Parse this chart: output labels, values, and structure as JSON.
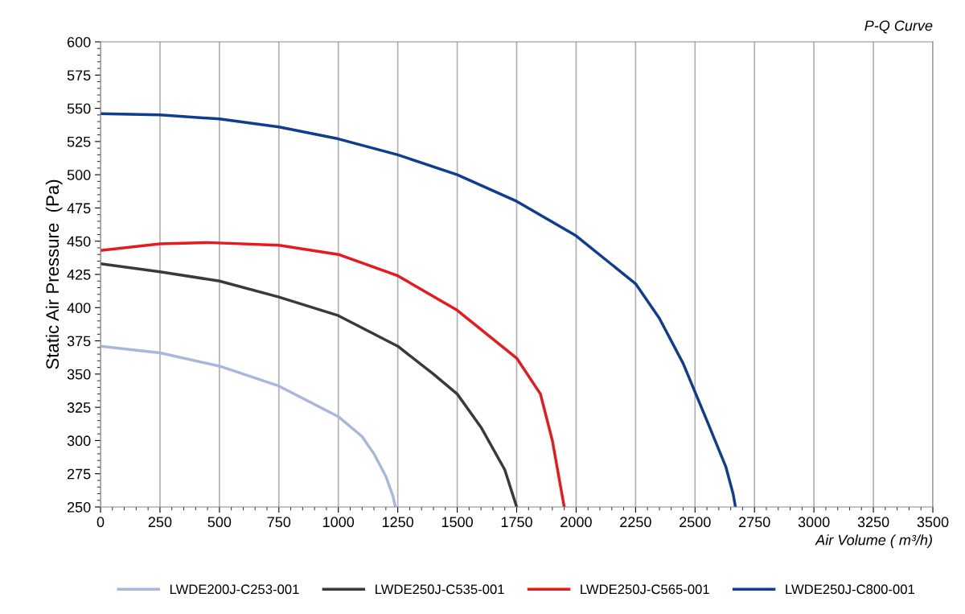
{
  "chart_data": {
    "type": "line",
    "title": "P-Q Curve",
    "xlabel": "Air Volume ( m³/h)",
    "ylabel": "Static Air Pressure  (Pa)",
    "xlim": [
      0,
      3500
    ],
    "xticks": [
      0,
      250,
      500,
      750,
      1000,
      1250,
      1500,
      1750,
      2000,
      2250,
      2500,
      2750,
      3000,
      3250,
      3500
    ],
    "ylim": [
      250,
      600
    ],
    "yticks": [
      250,
      275,
      300,
      325,
      350,
      375,
      400,
      425,
      450,
      475,
      500,
      525,
      550,
      575,
      600
    ],
    "grid": "x",
    "legend": "bottom",
    "marker": "none",
    "line_style": "solid",
    "series": [
      {
        "name": "LWDE200J-C253-001",
        "color": "#a9b7dd",
        "x": [
          0,
          250,
          500,
          750,
          1000,
          1100,
          1150,
          1200,
          1230,
          1240
        ],
        "values": [
          371,
          366,
          356,
          341,
          318,
          303,
          290,
          273,
          258,
          250
        ]
      },
      {
        "name": "LWDE250J-C535-001",
        "color": "#3a3a3a",
        "x": [
          0,
          250,
          500,
          750,
          1000,
          1250,
          1400,
          1500,
          1600,
          1700,
          1750
        ],
        "values": [
          433,
          427,
          420,
          408,
          394,
          371,
          350,
          335,
          310,
          278,
          250
        ]
      },
      {
        "name": "LWDE250J-C565-001",
        "color": "#e8191c",
        "x": [
          0,
          250,
          450,
          750,
          1000,
          1250,
          1500,
          1750,
          1850,
          1900,
          1930,
          1950
        ],
        "values": [
          443,
          448,
          449,
          447,
          440,
          424,
          398,
          362,
          335,
          300,
          270,
          250
        ]
      },
      {
        "name": "LWDE250J-C800-001",
        "color": "#0f3d8f",
        "x": [
          0,
          250,
          500,
          750,
          1000,
          1250,
          1500,
          1750,
          2000,
          2250,
          2350,
          2450,
          2550,
          2630,
          2660,
          2670
        ],
        "values": [
          546,
          545,
          542,
          536,
          527,
          515,
          500,
          480,
          454,
          418,
          392,
          358,
          315,
          280,
          260,
          250
        ]
      }
    ]
  }
}
